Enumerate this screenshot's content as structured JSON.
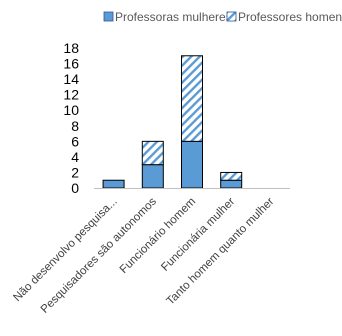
{
  "chart_data": {
    "type": "bar",
    "stacked": true,
    "categories": [
      "Não desenvolvo pesquisa...",
      "Pesquisadores são autonomos",
      "Funcionário homem",
      "Funcionária mulher",
      "Tanto homem quanto mulher"
    ],
    "series": [
      {
        "name": "Professoras mulheres",
        "values": [
          1,
          3,
          6,
          1,
          0
        ],
        "color": "#5B9BD5",
        "pattern": "solid"
      },
      {
        "name": "Professores homens",
        "values": [
          0,
          3,
          11,
          1,
          0
        ],
        "color": "#5B9BD5",
        "pattern": "diagonal-hatch"
      }
    ],
    "yticks": [
      "0",
      "2",
      "4",
      "6",
      "8",
      "10",
      "12",
      "14",
      "16",
      "18"
    ],
    "ylim": [
      0,
      18
    ],
    "grid": false,
    "legend_position": "top"
  }
}
